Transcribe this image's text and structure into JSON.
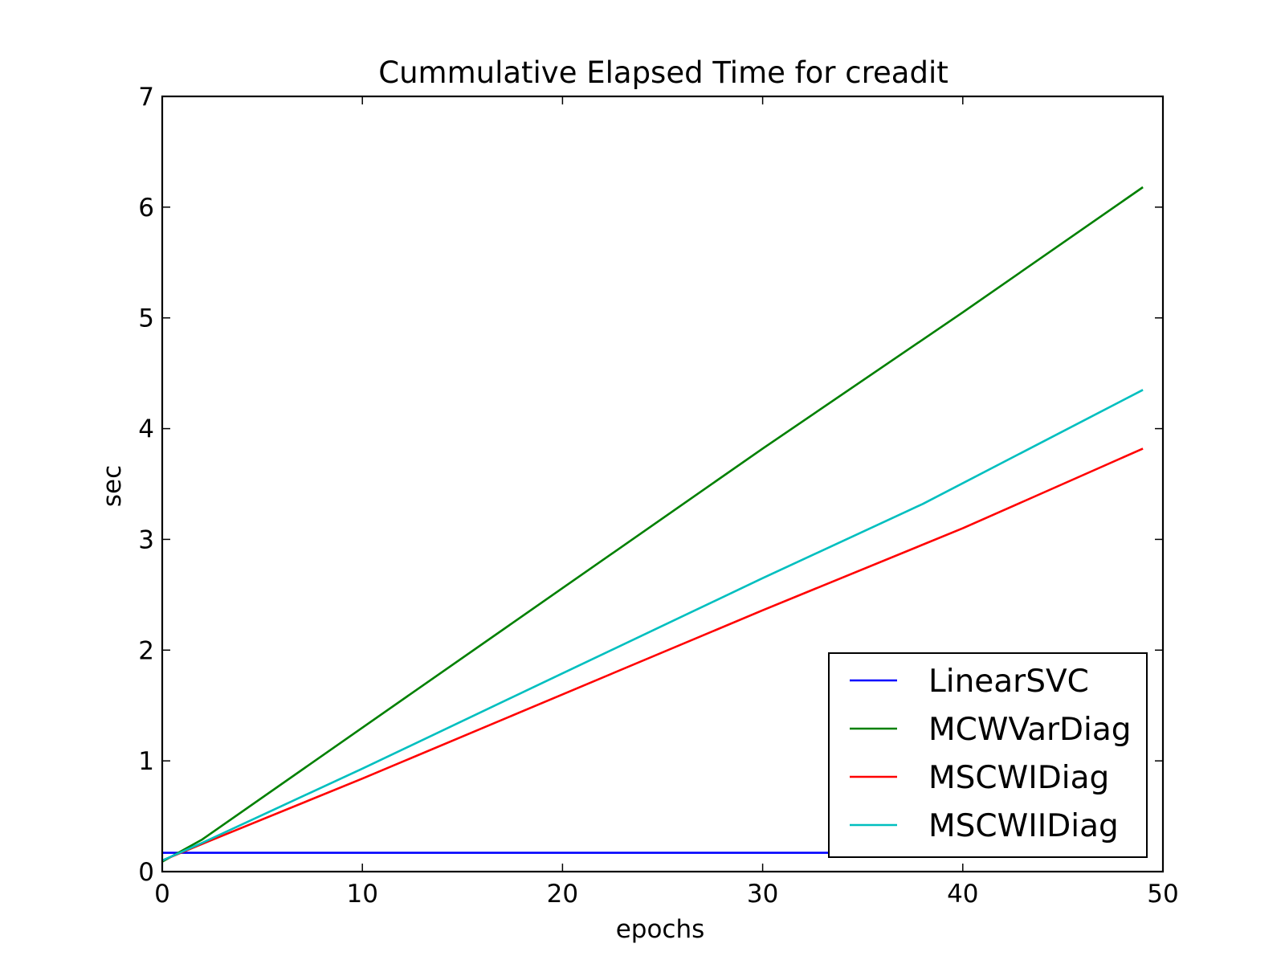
{
  "chart_data": {
    "type": "line",
    "title": "Cummulative Elapsed Time for creadit",
    "xlabel": "epochs",
    "ylabel": "sec",
    "xlim": [
      0,
      50
    ],
    "ylim": [
      0,
      7
    ],
    "xticks": [
      0,
      10,
      20,
      30,
      40,
      50
    ],
    "yticks": [
      0,
      1,
      2,
      3,
      4,
      5,
      6,
      7
    ],
    "grid": false,
    "legend_position": "lower-right",
    "series": [
      {
        "name": "LinearSVC",
        "color": "#0000ff",
        "x": [
          0,
          49
        ],
        "y": [
          0.17,
          0.17
        ]
      },
      {
        "name": "MCWVarDiag",
        "color": "#008000",
        "x": [
          0,
          2,
          10,
          20,
          30,
          40,
          49
        ],
        "y": [
          0.09,
          0.29,
          1.3,
          2.56,
          3.82,
          5.05,
          6.18
        ]
      },
      {
        "name": "MSCWIDiag",
        "color": "#ff0000",
        "x": [
          0,
          2,
          10,
          20,
          30,
          40,
          49
        ],
        "y": [
          0.1,
          0.25,
          0.84,
          1.6,
          2.36,
          3.1,
          3.82
        ]
      },
      {
        "name": "MSCWIIDiag",
        "color": "#00bfbf",
        "x": [
          0,
          2,
          10,
          20,
          30,
          38,
          49
        ],
        "y": [
          0.1,
          0.26,
          0.93,
          1.79,
          2.65,
          3.32,
          4.35
        ]
      }
    ]
  }
}
